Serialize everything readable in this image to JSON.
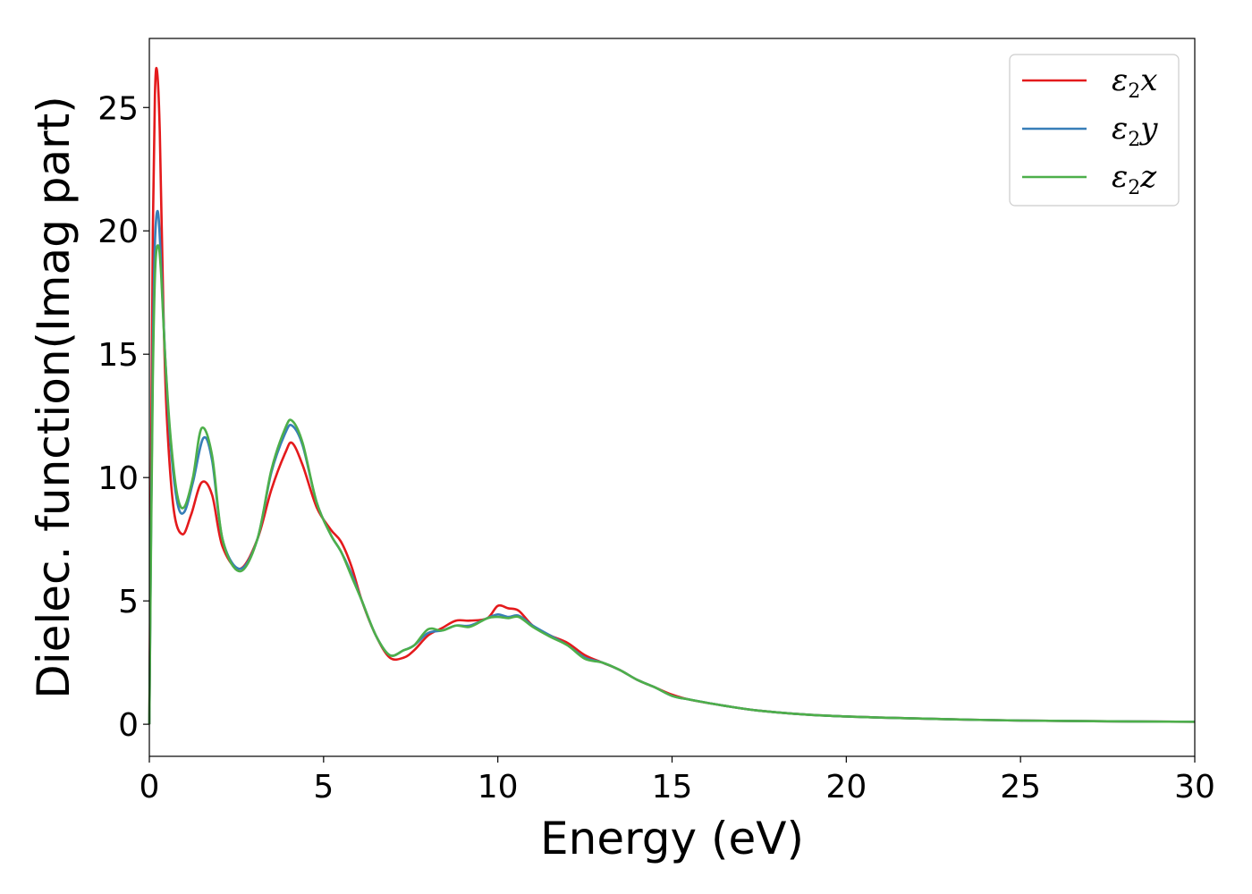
{
  "chart_data": {
    "type": "line",
    "title": "",
    "xlabel": "Energy (eV)",
    "ylabel": "Dielec. function(Imag part)",
    "xlim": [
      0,
      30
    ],
    "ylim": [
      -1.3,
      27.8
    ],
    "xticks": [
      0,
      5,
      10,
      15,
      20,
      25,
      30
    ],
    "yticks": [
      0,
      5,
      10,
      15,
      20,
      25
    ],
    "grid": false,
    "legend_position": "top-right",
    "series": [
      {
        "name_main": "ε",
        "name_sub": "2",
        "name_tail": "x",
        "color": "#e41a1c",
        "points": [
          [
            0,
            0
          ],
          [
            0.05,
            10
          ],
          [
            0.1,
            20
          ],
          [
            0.16,
            25.5
          ],
          [
            0.22,
            26.5
          ],
          [
            0.3,
            24
          ],
          [
            0.4,
            17
          ],
          [
            0.5,
            12.5
          ],
          [
            0.7,
            8.7
          ],
          [
            0.95,
            7.7
          ],
          [
            1.2,
            8.5
          ],
          [
            1.5,
            9.8
          ],
          [
            1.8,
            9.3
          ],
          [
            2.1,
            7.2
          ],
          [
            2.6,
            6.3
          ],
          [
            3.1,
            7.5
          ],
          [
            3.5,
            9.5
          ],
          [
            3.9,
            11.0
          ],
          [
            4.1,
            11.4
          ],
          [
            4.4,
            10.5
          ],
          [
            4.8,
            8.8
          ],
          [
            5.2,
            7.9
          ],
          [
            5.5,
            7.4
          ],
          [
            5.8,
            6.4
          ],
          [
            6.1,
            5.0
          ],
          [
            6.5,
            3.6
          ],
          [
            6.9,
            2.7
          ],
          [
            7.3,
            2.7
          ],
          [
            7.6,
            3.0
          ],
          [
            8.0,
            3.6
          ],
          [
            8.4,
            3.9
          ],
          [
            8.8,
            4.2
          ],
          [
            9.2,
            4.2
          ],
          [
            9.7,
            4.3
          ],
          [
            10.0,
            4.8
          ],
          [
            10.3,
            4.7
          ],
          [
            10.6,
            4.6
          ],
          [
            11.0,
            4.0
          ],
          [
            11.5,
            3.6
          ],
          [
            12.0,
            3.3
          ],
          [
            12.5,
            2.8
          ],
          [
            13.0,
            2.5
          ],
          [
            13.5,
            2.2
          ],
          [
            14.0,
            1.8
          ],
          [
            14.5,
            1.5
          ],
          [
            15.0,
            1.2
          ],
          [
            15.5,
            1.0
          ],
          [
            16.5,
            0.75
          ],
          [
            17.5,
            0.55
          ],
          [
            19.0,
            0.38
          ],
          [
            21.0,
            0.27
          ],
          [
            23.0,
            0.2
          ],
          [
            25.0,
            0.15
          ],
          [
            27.5,
            0.12
          ],
          [
            30.0,
            0.1
          ]
        ]
      },
      {
        "name_main": "ε",
        "name_sub": "2",
        "name_tail": "y",
        "color": "#377eb8",
        "points": [
          [
            0,
            0
          ],
          [
            0.05,
            8
          ],
          [
            0.1,
            15
          ],
          [
            0.16,
            19.5
          ],
          [
            0.24,
            20.8
          ],
          [
            0.32,
            19.2
          ],
          [
            0.45,
            15
          ],
          [
            0.6,
            11.5
          ],
          [
            0.8,
            9.0
          ],
          [
            1.0,
            8.6
          ],
          [
            1.25,
            9.8
          ],
          [
            1.55,
            11.6
          ],
          [
            1.8,
            10.7
          ],
          [
            2.1,
            7.5
          ],
          [
            2.6,
            6.3
          ],
          [
            3.1,
            7.5
          ],
          [
            3.5,
            10.2
          ],
          [
            3.9,
            11.8
          ],
          [
            4.1,
            12.1
          ],
          [
            4.4,
            11.3
          ],
          [
            4.8,
            9.0
          ],
          [
            5.2,
            7.7
          ],
          [
            5.5,
            7.0
          ],
          [
            5.8,
            6.1
          ],
          [
            6.1,
            5.0
          ],
          [
            6.5,
            3.6
          ],
          [
            6.9,
            2.8
          ],
          [
            7.3,
            3.0
          ],
          [
            7.6,
            3.2
          ],
          [
            8.0,
            3.7
          ],
          [
            8.4,
            3.8
          ],
          [
            8.8,
            4.0
          ],
          [
            9.2,
            4.0
          ],
          [
            9.7,
            4.3
          ],
          [
            10.0,
            4.45
          ],
          [
            10.3,
            4.35
          ],
          [
            10.6,
            4.4
          ],
          [
            11.0,
            4.0
          ],
          [
            11.5,
            3.6
          ],
          [
            12.0,
            3.2
          ],
          [
            12.5,
            2.7
          ],
          [
            13.0,
            2.5
          ],
          [
            13.5,
            2.2
          ],
          [
            14.0,
            1.8
          ],
          [
            14.5,
            1.5
          ],
          [
            15.0,
            1.15
          ],
          [
            15.5,
            1.0
          ],
          [
            16.5,
            0.75
          ],
          [
            17.5,
            0.55
          ],
          [
            19.0,
            0.38
          ],
          [
            21.0,
            0.27
          ],
          [
            23.0,
            0.2
          ],
          [
            25.0,
            0.15
          ],
          [
            27.5,
            0.12
          ],
          [
            30.0,
            0.1
          ]
        ]
      },
      {
        "name_main": "ε",
        "name_sub": "2",
        "name_tail": "z",
        "color": "#4daf4a",
        "points": [
          [
            0,
            0
          ],
          [
            0.05,
            7.5
          ],
          [
            0.1,
            14
          ],
          [
            0.17,
            18.5
          ],
          [
            0.26,
            19.4
          ],
          [
            0.34,
            18.2
          ],
          [
            0.45,
            15
          ],
          [
            0.6,
            11.8
          ],
          [
            0.8,
            9.3
          ],
          [
            1.0,
            8.8
          ],
          [
            1.25,
            10
          ],
          [
            1.5,
            12.0
          ],
          [
            1.8,
            10.9
          ],
          [
            2.1,
            7.5
          ],
          [
            2.6,
            6.2
          ],
          [
            3.1,
            7.5
          ],
          [
            3.5,
            10.3
          ],
          [
            3.9,
            12.0
          ],
          [
            4.1,
            12.3
          ],
          [
            4.4,
            11.4
          ],
          [
            4.8,
            9.0
          ],
          [
            5.2,
            7.7
          ],
          [
            5.5,
            7.0
          ],
          [
            5.8,
            6.0
          ],
          [
            6.1,
            5.0
          ],
          [
            6.5,
            3.6
          ],
          [
            6.9,
            2.8
          ],
          [
            7.3,
            3.0
          ],
          [
            7.6,
            3.2
          ],
          [
            8.0,
            3.85
          ],
          [
            8.4,
            3.8
          ],
          [
            8.8,
            4.0
          ],
          [
            9.2,
            3.95
          ],
          [
            9.7,
            4.3
          ],
          [
            10.0,
            4.35
          ],
          [
            10.3,
            4.3
          ],
          [
            10.6,
            4.35
          ],
          [
            11.0,
            3.95
          ],
          [
            11.5,
            3.55
          ],
          [
            12.0,
            3.2
          ],
          [
            12.5,
            2.65
          ],
          [
            13.0,
            2.5
          ],
          [
            13.5,
            2.2
          ],
          [
            14.0,
            1.8
          ],
          [
            14.5,
            1.5
          ],
          [
            15.0,
            1.15
          ],
          [
            15.5,
            1.0
          ],
          [
            16.5,
            0.75
          ],
          [
            17.5,
            0.55
          ],
          [
            19.0,
            0.38
          ],
          [
            21.0,
            0.27
          ],
          [
            23.0,
            0.2
          ],
          [
            25.0,
            0.15
          ],
          [
            27.5,
            0.12
          ],
          [
            30.0,
            0.1
          ]
        ]
      }
    ]
  }
}
